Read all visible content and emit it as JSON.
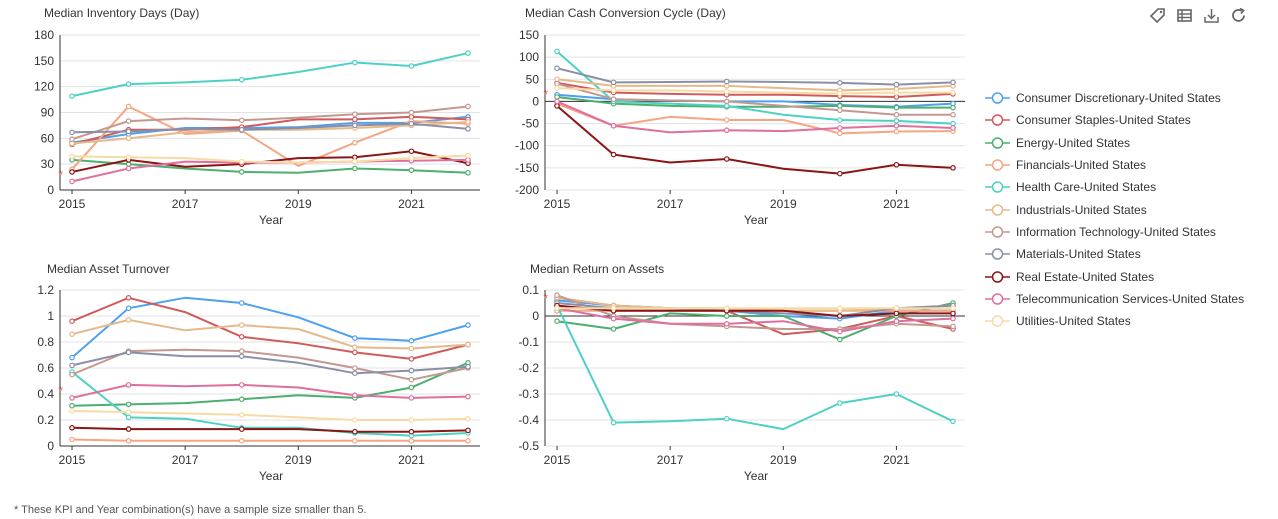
{
  "toolbar": {
    "icons": [
      "tag-icon",
      "table-icon",
      "download-icon",
      "refresh-icon"
    ]
  },
  "footnote": "* These KPI and Year combination(s) have a sample size smaller than 5.",
  "series_meta": [
    {
      "name": "Consumer Discretionary-United States",
      "color": "#4ea1f0"
    },
    {
      "name": "Consumer Staples-United States",
      "color": "#d15b5b"
    },
    {
      "name": "Energy-United States",
      "color": "#4caf6e"
    },
    {
      "name": "Financials-United States",
      "color": "#f5a582"
    },
    {
      "name": "Health Care-United States",
      "color": "#4dd1c4"
    },
    {
      "name": "Industrials-United States",
      "color": "#e6b98a"
    },
    {
      "name": "Information Technology-United States",
      "color": "#c49891"
    },
    {
      "name": "Materials-United States",
      "color": "#8a8fa6"
    },
    {
      "name": "Real Estate-United States",
      "color": "#8b1515"
    },
    {
      "name": "Telecommunication Services-United States",
      "color": "#de6f9e"
    },
    {
      "name": "Utilities-United States",
      "color": "#f7dba5"
    }
  ],
  "chart_data": [
    {
      "type": "line",
      "title": "Median Inventory Days (Day)",
      "xlabel": "Year",
      "ylabel": "",
      "x": [
        2015,
        2016,
        2017,
        2018,
        2019,
        2020,
        2021,
        2022
      ],
      "xticks": [
        "2015",
        "2017",
        "2019",
        "2021"
      ],
      "ylim": [
        0,
        180
      ],
      "yticks": [
        0,
        30,
        60,
        90,
        120,
        150,
        180
      ],
      "ytick_labels": [
        "0",
        "30",
        "60",
        "90",
        "120",
        "150",
        "180"
      ],
      "asterisk_y": 20,
      "series": [
        {
          "name": "Consumer Discretionary-United States",
          "values": [
            55,
            65,
            72,
            72,
            73,
            78,
            78,
            85
          ]
        },
        {
          "name": "Consumer Staples-United States",
          "values": [
            53,
            70,
            70,
            73,
            82,
            82,
            85,
            82
          ]
        },
        {
          "name": "Energy-United States",
          "values": [
            35,
            30,
            25,
            21,
            20,
            25,
            23,
            20
          ]
        },
        {
          "name": "Financials-United States",
          "values": [
            24,
            97,
            65,
            69,
            28,
            55,
            80,
            77
          ]
        },
        {
          "name": "Health Care-United States",
          "values": [
            109,
            123,
            125,
            128,
            137,
            148,
            144,
            159
          ]
        },
        {
          "name": "Industrials-United States",
          "values": [
            54,
            60,
            67,
            70,
            70,
            72,
            75,
            79
          ]
        },
        {
          "name": "Information Technology-United States",
          "values": [
            59,
            80,
            83,
            81,
            84,
            88,
            90,
            97
          ]
        },
        {
          "name": "Materials-United States",
          "values": [
            67,
            68,
            71,
            70,
            72,
            75,
            77,
            71
          ]
        },
        {
          "name": "Real Estate-United States",
          "values": [
            21,
            35,
            27,
            30,
            37,
            38,
            45,
            31
          ]
        },
        {
          "name": "Telecommunication Services-United States",
          "values": [
            10,
            25,
            33,
            32,
            32,
            33,
            34,
            35
          ]
        },
        {
          "name": "Utilities-United States",
          "values": [
            39,
            38,
            37,
            33,
            32,
            33,
            37,
            40
          ]
        }
      ]
    },
    {
      "type": "line",
      "title": "Median Cash Conversion Cycle (Day)",
      "xlabel": "Year",
      "ylabel": "",
      "x": [
        2015,
        2016,
        2017,
        2018,
        2019,
        2020,
        2021,
        2022
      ],
      "xticks": [
        "2015",
        "2017",
        "2019",
        "2021"
      ],
      "ylim": [
        -200,
        150
      ],
      "yticks": [
        -200,
        -150,
        -100,
        -50,
        0,
        50,
        100,
        150
      ],
      "ytick_labels": [
        "-200",
        "-150",
        "-100",
        "-50",
        "0",
        "50",
        "100",
        "150"
      ],
      "asterisk_y": 20,
      "series": [
        {
          "name": "Consumer Discretionary-United States",
          "values": [
            15,
            5,
            2,
            0,
            0,
            -8,
            -12,
            -5
          ]
        },
        {
          "name": "Consumer Staples-United States",
          "values": [
            42,
            20,
            17,
            15,
            15,
            12,
            10,
            17
          ]
        },
        {
          "name": "Energy-United States",
          "values": [
            10,
            -5,
            -10,
            -12,
            -12,
            -10,
            -14,
            -14
          ]
        },
        {
          "name": "Financials-United States",
          "values": [
            -5,
            -55,
            -35,
            -42,
            -42,
            -72,
            -68,
            -67
          ]
        },
        {
          "name": "Health Care-United States",
          "values": [
            113,
            0,
            -5,
            -10,
            -30,
            -42,
            -44,
            -50
          ]
        },
        {
          "name": "Industrials-United States",
          "values": [
            50,
            35,
            35,
            35,
            30,
            25,
            28,
            35
          ]
        },
        {
          "name": "Information Technology-United States",
          "values": [
            40,
            5,
            2,
            0,
            -10,
            -20,
            -30,
            -30
          ]
        },
        {
          "name": "Materials-United States",
          "values": [
            75,
            43,
            44,
            45,
            44,
            42,
            38,
            43
          ]
        },
        {
          "name": "Real Estate-United States",
          "values": [
            -10,
            -120,
            -138,
            -130,
            -152,
            -163,
            -143,
            -150
          ]
        },
        {
          "name": "Telecommunication Services-United States",
          "values": [
            0,
            -55,
            -70,
            -65,
            -67,
            -60,
            -55,
            -60
          ]
        },
        {
          "name": "Utilities-United States",
          "values": [
            30,
            25,
            25,
            22,
            20,
            18,
            20,
            20
          ]
        }
      ]
    },
    {
      "type": "line",
      "title": "Median Asset Turnover",
      "xlabel": "Year",
      "ylabel": "",
      "x": [
        2015,
        2016,
        2017,
        2018,
        2019,
        2020,
        2021,
        2022
      ],
      "xticks": [
        "2015",
        "2017",
        "2019",
        "2021"
      ],
      "ylim": [
        0,
        1.2
      ],
      "yticks": [
        0,
        0.2,
        0.4,
        0.6,
        0.8,
        1.0,
        1.2
      ],
      "ytick_labels": [
        "0",
        "0.2",
        "0.4",
        "0.6",
        "0.8",
        "1",
        "1.2"
      ],
      "asterisk_y": 0.44,
      "series": [
        {
          "name": "Consumer Discretionary-United States",
          "values": [
            0.68,
            1.06,
            1.14,
            1.1,
            0.99,
            0.83,
            0.81,
            0.93
          ]
        },
        {
          "name": "Consumer Staples-United States",
          "values": [
            0.96,
            1.14,
            1.03,
            0.84,
            0.79,
            0.72,
            0.67,
            0.78
          ]
        },
        {
          "name": "Energy-United States",
          "values": [
            0.31,
            0.32,
            0.33,
            0.36,
            0.39,
            0.37,
            0.45,
            0.64
          ]
        },
        {
          "name": "Financials-United States",
          "values": [
            0.05,
            0.04,
            0.04,
            0.04,
            0.04,
            0.04,
            0.04,
            0.04
          ]
        },
        {
          "name": "Health Care-United States",
          "values": [
            0.57,
            0.22,
            0.21,
            0.14,
            0.14,
            0.1,
            0.08,
            0.1
          ]
        },
        {
          "name": "Industrials-United States",
          "values": [
            0.86,
            0.97,
            0.89,
            0.93,
            0.9,
            0.76,
            0.75,
            0.78
          ]
        },
        {
          "name": "Information Technology-United States",
          "values": [
            0.55,
            0.73,
            0.74,
            0.73,
            0.68,
            0.6,
            0.51,
            0.6
          ]
        },
        {
          "name": "Materials-United States",
          "values": [
            0.62,
            0.72,
            0.69,
            0.69,
            0.64,
            0.56,
            0.58,
            0.61
          ]
        },
        {
          "name": "Real Estate-United States",
          "values": [
            0.14,
            0.13,
            0.13,
            0.13,
            0.13,
            0.11,
            0.11,
            0.12
          ]
        },
        {
          "name": "Telecommunication Services-United States",
          "values": [
            0.37,
            0.47,
            0.46,
            0.47,
            0.45,
            0.39,
            0.37,
            0.38
          ]
        },
        {
          "name": "Utilities-United States",
          "values": [
            0.27,
            0.26,
            0.25,
            0.24,
            0.22,
            0.2,
            0.2,
            0.21
          ]
        }
      ]
    },
    {
      "type": "line",
      "title": "Median Return on Assets",
      "xlabel": "Year",
      "ylabel": "",
      "x": [
        2015,
        2016,
        2017,
        2018,
        2019,
        2020,
        2021,
        2022
      ],
      "xticks": [
        "2015",
        "2017",
        "2019",
        "2021"
      ],
      "ylim": [
        -0.5,
        0.1
      ],
      "yticks": [
        -0.5,
        -0.4,
        -0.3,
        -0.2,
        -0.1,
        0,
        0.1
      ],
      "ytick_labels": [
        "-0.5",
        "-0.4",
        "-0.3",
        "-0.2",
        "-0.1",
        "0",
        "0.1"
      ],
      "asterisk_y": 0.075,
      "series": [
        {
          "name": "Consumer Discretionary-United States",
          "values": [
            0.06,
            0.04,
            0.03,
            0.02,
            0.0,
            -0.01,
            0.02,
            0.02
          ]
        },
        {
          "name": "Consumer Staples-United States",
          "values": [
            0.07,
            0.04,
            0.03,
            0.02,
            -0.07,
            -0.05,
            0.0,
            -0.05
          ]
        },
        {
          "name": "Energy-United States",
          "values": [
            -0.02,
            -0.05,
            0.01,
            0.0,
            0.0,
            -0.09,
            0.0,
            0.05
          ]
        },
        {
          "name": "Financials-United States",
          "values": [
            0.02,
            0.02,
            0.02,
            0.02,
            0.02,
            0.02,
            0.02,
            0.02
          ]
        },
        {
          "name": "Health Care-United States",
          "values": [
            0.04,
            -0.41,
            -0.405,
            -0.395,
            -0.435,
            -0.335,
            -0.3,
            -0.405
          ]
        },
        {
          "name": "Industrials-United States",
          "values": [
            0.07,
            0.04,
            0.03,
            0.03,
            0.02,
            0.02,
            0.03,
            0.04
          ]
        },
        {
          "name": "Information Technology-United States",
          "values": [
            0.08,
            0.0,
            -0.03,
            -0.04,
            -0.05,
            -0.05,
            -0.03,
            -0.04
          ]
        },
        {
          "name": "Materials-United States",
          "values": [
            0.05,
            0.03,
            0.03,
            0.02,
            0.01,
            0.0,
            0.03,
            0.04
          ]
        },
        {
          "name": "Real Estate-United States",
          "values": [
            0.04,
            0.02,
            0.02,
            0.02,
            0.02,
            0.0,
            0.01,
            0.01
          ]
        },
        {
          "name": "Telecommunication Services-United States",
          "values": [
            0.03,
            -0.01,
            -0.03,
            -0.03,
            -0.02,
            -0.06,
            -0.02,
            -0.01
          ]
        },
        {
          "name": "Utilities-United States",
          "values": [
            0.03,
            0.03,
            0.03,
            0.03,
            0.03,
            0.03,
            0.03,
            0.03
          ]
        }
      ]
    }
  ]
}
